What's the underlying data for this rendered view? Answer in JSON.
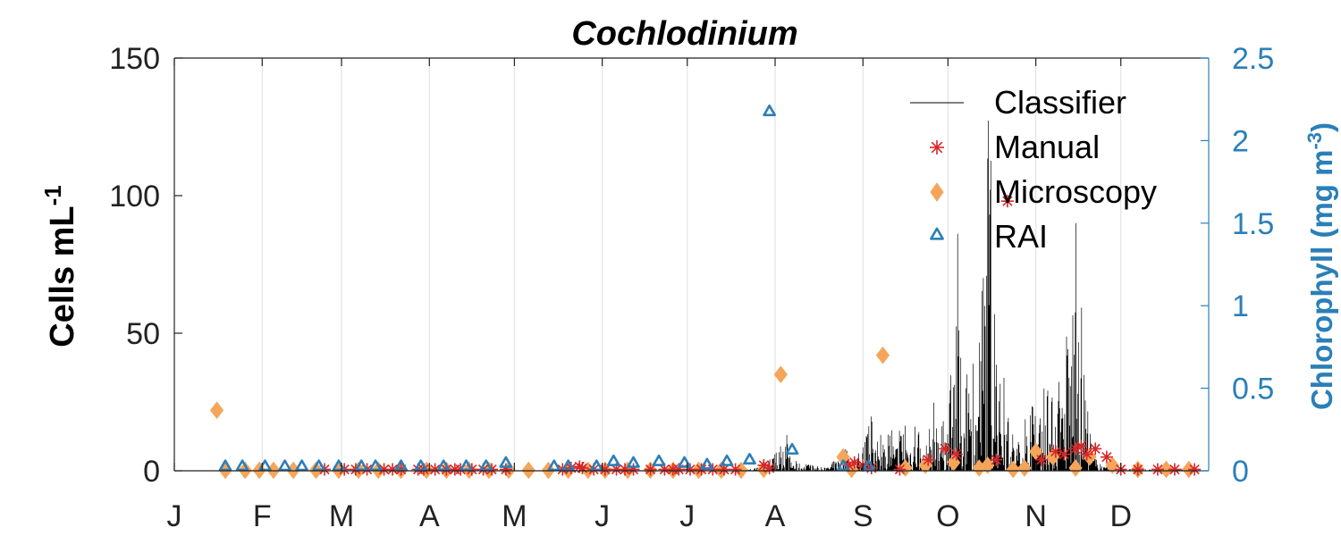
{
  "chart_data": {
    "type": "scatter",
    "title": "Cochlodinium",
    "ylabel_left": {
      "main": "Cells mL",
      "sup": "-1"
    },
    "ylabel_right": {
      "main": "Chlorophyll (mg m",
      "sup": "-3",
      "close": ")"
    },
    "xlim": [
      0,
      365
    ],
    "ylim_left": [
      0,
      150
    ],
    "ylim_right": [
      0,
      2.5
    ],
    "yticks_left": [
      0,
      50,
      100,
      150
    ],
    "yticks_left_labels": [
      "0",
      "50",
      "100",
      "150"
    ],
    "yticks_right": [
      0,
      0.5,
      1,
      1.5,
      2,
      2.5
    ],
    "yticks_right_labels": [
      "0",
      "0.5",
      "1",
      "1.5",
      "2",
      "2.5"
    ],
    "x_ticks": [
      {
        "day": 0,
        "label": "J"
      },
      {
        "day": 31,
        "label": "F"
      },
      {
        "day": 59,
        "label": "M"
      },
      {
        "day": 90,
        "label": "A"
      },
      {
        "day": 120,
        "label": "M"
      },
      {
        "day": 151,
        "label": "J"
      },
      {
        "day": 181,
        "label": "J"
      },
      {
        "day": 212,
        "label": "A"
      },
      {
        "day": 243,
        "label": "S"
      },
      {
        "day": 273,
        "label": "O"
      },
      {
        "day": 304,
        "label": "N"
      },
      {
        "day": 334,
        "label": "D"
      }
    ],
    "grid": "vertical",
    "legend": {
      "placement": "top-right",
      "entries": [
        "Classifier",
        "Manual",
        "Microscopy",
        "RAI"
      ]
    },
    "colors": {
      "classifier": "#000000",
      "manual": "#d62728",
      "microscopy": "#f5a55a",
      "rai": "#2b7fb8",
      "right_axis": "#2b7fb8"
    },
    "series": [
      {
        "name": "Classifier",
        "kind": "line",
        "peaks": [
          [
            200,
            0.3
          ],
          [
            208,
            1.5
          ],
          [
            210,
            4
          ],
          [
            212,
            6
          ],
          [
            214,
            9
          ],
          [
            215,
            22
          ],
          [
            217,
            6
          ],
          [
            220,
            3
          ],
          [
            225,
            2
          ],
          [
            230,
            1
          ],
          [
            237,
            8
          ],
          [
            239,
            3
          ],
          [
            241,
            5
          ],
          [
            243,
            10
          ],
          [
            244,
            12
          ],
          [
            246,
            20
          ],
          [
            247,
            6
          ],
          [
            249,
            14
          ],
          [
            251,
            6
          ],
          [
            253,
            22
          ],
          [
            254,
            8
          ],
          [
            256,
            15
          ],
          [
            258,
            27
          ],
          [
            259,
            10
          ],
          [
            261,
            20
          ],
          [
            262,
            25
          ],
          [
            264,
            6
          ],
          [
            266,
            12
          ],
          [
            268,
            28
          ],
          [
            269,
            14
          ],
          [
            270,
            32
          ],
          [
            271,
            18
          ],
          [
            273,
            22
          ],
          [
            274,
            35
          ],
          [
            275,
            60
          ],
          [
            276,
            108
          ],
          [
            277,
            55
          ],
          [
            278,
            30
          ],
          [
            279,
            48
          ],
          [
            280,
            30
          ],
          [
            281,
            25
          ],
          [
            282,
            40
          ],
          [
            283,
            28
          ],
          [
            284,
            60
          ],
          [
            285,
            75
          ],
          [
            286,
            98
          ],
          [
            287,
            130
          ],
          [
            288,
            118
          ],
          [
            289,
            70
          ],
          [
            290,
            40
          ],
          [
            291,
            25
          ],
          [
            292,
            45
          ],
          [
            293,
            30
          ],
          [
            294,
            20
          ],
          [
            296,
            15
          ],
          [
            298,
            10
          ],
          [
            300,
            20
          ],
          [
            301,
            15
          ],
          [
            303,
            25
          ],
          [
            305,
            12
          ],
          [
            307,
            40
          ],
          [
            309,
            22
          ],
          [
            311,
            40
          ],
          [
            312,
            35
          ],
          [
            313,
            20
          ],
          [
            314,
            30
          ],
          [
            315,
            60
          ],
          [
            316,
            55
          ],
          [
            317,
            75
          ],
          [
            318,
            85
          ],
          [
            319,
            120
          ],
          [
            320,
            70
          ],
          [
            321,
            35
          ],
          [
            322,
            25
          ],
          [
            323,
            15
          ],
          [
            324,
            8
          ],
          [
            326,
            3
          ],
          [
            328,
            1.5
          ],
          [
            331,
            1
          ],
          [
            335,
            0.5
          ],
          [
            340,
            0.8
          ],
          [
            345,
            0.4
          ],
          [
            350,
            0.6
          ],
          [
            355,
            0.8
          ],
          [
            360,
            0.3
          ]
        ]
      },
      {
        "name": "Manual",
        "kind": "marker",
        "points": [
          [
            53,
            0.5
          ],
          [
            60,
            0.5
          ],
          [
            64,
            0.5
          ],
          [
            68,
            0.5
          ],
          [
            74,
            0.5
          ],
          [
            77,
            0.5
          ],
          [
            80,
            0.5
          ],
          [
            86,
            0.5
          ],
          [
            88,
            0.5
          ],
          [
            92,
            0.5
          ],
          [
            96,
            0.5
          ],
          [
            99,
            0.5
          ],
          [
            101,
            0.5
          ],
          [
            105,
            0.5
          ],
          [
            109,
            0.5
          ],
          [
            112,
            0.5
          ],
          [
            117,
            0.5
          ],
          [
            137,
            0.5
          ],
          [
            140,
            1
          ],
          [
            143,
            1.5
          ],
          [
            144,
            1
          ],
          [
            148,
            0.5
          ],
          [
            152,
            0.5
          ],
          [
            156,
            0.5
          ],
          [
            159,
            0.5
          ],
          [
            162,
            0.5
          ],
          [
            168,
            0.5
          ],
          [
            173,
            0.5
          ],
          [
            176,
            0.5
          ],
          [
            178,
            0.5
          ],
          [
            182,
            0.5
          ],
          [
            186,
            0.5
          ],
          [
            190,
            0.5
          ],
          [
            194,
            0.5
          ],
          [
            198,
            0.5
          ],
          [
            208,
            2
          ],
          [
            210,
            1
          ],
          [
            238,
            2
          ],
          [
            240,
            3
          ],
          [
            243,
            2
          ],
          [
            246,
            1
          ],
          [
            256,
            0.5
          ],
          [
            266,
            4
          ],
          [
            272,
            8
          ],
          [
            276,
            6
          ],
          [
            290,
            4
          ],
          [
            294,
            98
          ],
          [
            306,
            4
          ],
          [
            311,
            7
          ],
          [
            314,
            6
          ],
          [
            318,
            8
          ],
          [
            320,
            9
          ],
          [
            322,
            6
          ],
          [
            325,
            8
          ],
          [
            329,
            5
          ],
          [
            334,
            0.5
          ],
          [
            340,
            0.5
          ],
          [
            347,
            0.5
          ],
          [
            353,
            0.5
          ],
          [
            360,
            0.5
          ]
        ]
      },
      {
        "name": "Microscopy",
        "kind": "marker",
        "points": [
          [
            15,
            22
          ],
          [
            18,
            0.2
          ],
          [
            25,
            0.2
          ],
          [
            30,
            0.2
          ],
          [
            35,
            0.2
          ],
          [
            42,
            0.2
          ],
          [
            50,
            0.2
          ],
          [
            58,
            0.2
          ],
          [
            65,
            0.2
          ],
          [
            72,
            0.2
          ],
          [
            80,
            0.2
          ],
          [
            89,
            0.2
          ],
          [
            96,
            0.2
          ],
          [
            104,
            0.2
          ],
          [
            111,
            0.2
          ],
          [
            118,
            0.2
          ],
          [
            125,
            0.2
          ],
          [
            132,
            0.2
          ],
          [
            139,
            0.2
          ],
          [
            146,
            0.2
          ],
          [
            152,
            0.2
          ],
          [
            160,
            0.2
          ],
          [
            168,
            0.2
          ],
          [
            176,
            0.2
          ],
          [
            185,
            0.2
          ],
          [
            193,
            0.2
          ],
          [
            200,
            0.2
          ],
          [
            208,
            0.5
          ],
          [
            214,
            35
          ],
          [
            236,
            5
          ],
          [
            239,
            0.5
          ],
          [
            250,
            42
          ],
          [
            258,
            1
          ],
          [
            265,
            2
          ],
          [
            275,
            3
          ],
          [
            284,
            1
          ],
          [
            287,
            2
          ],
          [
            296,
            0.5
          ],
          [
            300,
            1
          ],
          [
            304,
            7
          ],
          [
            310,
            5
          ],
          [
            318,
            1
          ],
          [
            323,
            5
          ],
          [
            331,
            2
          ],
          [
            340,
            0.5
          ],
          [
            350,
            0.5
          ],
          [
            358,
            0.5
          ]
        ]
      },
      {
        "name": "RAI",
        "kind": "marker",
        "axis": "right",
        "points": [
          [
            18,
            0.01
          ],
          [
            24,
            0.01
          ],
          [
            32,
            0.01
          ],
          [
            39,
            0.01
          ],
          [
            45,
            0.01
          ],
          [
            51,
            0.01
          ],
          [
            58,
            0.01
          ],
          [
            66,
            0.01
          ],
          [
            71,
            0.01
          ],
          [
            80,
            0.01
          ],
          [
            87,
            0.01
          ],
          [
            95,
            0.01
          ],
          [
            103,
            0.01
          ],
          [
            110,
            0.01
          ],
          [
            117,
            0.03
          ],
          [
            134,
            0.01
          ],
          [
            139,
            0.01
          ],
          [
            149,
            0.01
          ],
          [
            155,
            0.04
          ],
          [
            162,
            0.03
          ],
          [
            171,
            0.04
          ],
          [
            180,
            0.03
          ],
          [
            188,
            0.02
          ],
          [
            195,
            0.04
          ],
          [
            203,
            0.05
          ],
          [
            210,
            2.16
          ],
          [
            218,
            0.11
          ],
          [
            236,
            0.01
          ],
          [
            245,
            0.01
          ]
        ]
      }
    ]
  }
}
